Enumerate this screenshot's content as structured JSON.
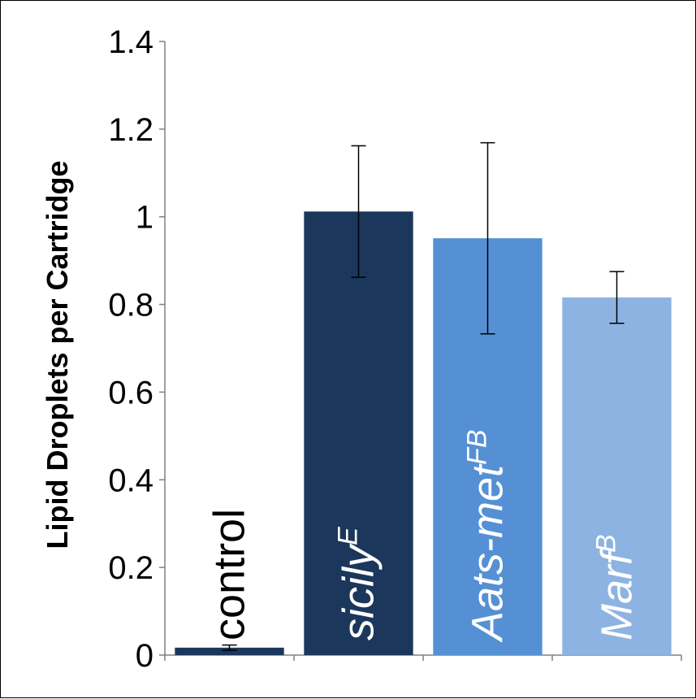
{
  "chart_data": {
    "type": "bar",
    "ylabel": "Lipid Droplets per Cartridge",
    "xlabel": "",
    "ylim": [
      0,
      1.4
    ],
    "yticks": [
      "0",
      "0.2",
      "0.4",
      "0.6",
      "0.8",
      "1",
      "1.2",
      "1.4"
    ],
    "categories": [
      {
        "base": "control",
        "sup": "",
        "italic": false,
        "label_color": "#000000"
      },
      {
        "base": "sicily",
        "sup": "E",
        "italic": true,
        "label_color": "#ffffff"
      },
      {
        "base": "Aats-met",
        "sup": "FB",
        "italic": true,
        "label_color": "#ffffff"
      },
      {
        "base": "Marf",
        "sup": "B",
        "italic": true,
        "label_color": "#ffffff"
      }
    ],
    "values": [
      0.017,
      1.012,
      0.951,
      0.816
    ],
    "errors": [
      0.006,
      0.15,
      0.218,
      0.059
    ],
    "colors": [
      "#1c375c",
      "#1c375c",
      "#5590d5",
      "#8db3e2"
    ],
    "grid": false,
    "legend": "none"
  }
}
